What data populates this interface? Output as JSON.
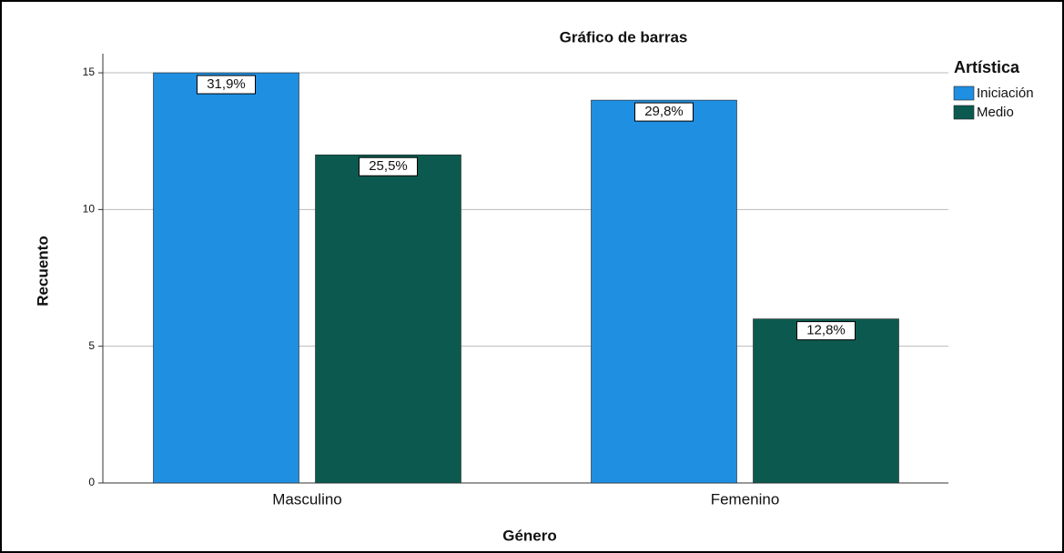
{
  "chart_data": {
    "type": "bar",
    "title": "Gráfico de barras",
    "x_label": "Género",
    "y_label": "Recuento",
    "categories": [
      "Masculino",
      "Femenino"
    ],
    "legend_title": "Artística",
    "legend": "right",
    "series": [
      {
        "name": "Iniciación",
        "color": "#1f8fe2",
        "values": [
          15,
          14
        ],
        "percent_labels": [
          "31,9%",
          "29,8%"
        ]
      },
      {
        "name": "Medio",
        "color": "#0c5a4f",
        "values": [
          12,
          6
        ],
        "percent_labels": [
          "25,5%",
          "12,8%"
        ]
      }
    ],
    "ylim": [
      0,
      15.7
    ],
    "yticks": [
      0,
      5,
      10,
      15
    ],
    "grid": true
  }
}
